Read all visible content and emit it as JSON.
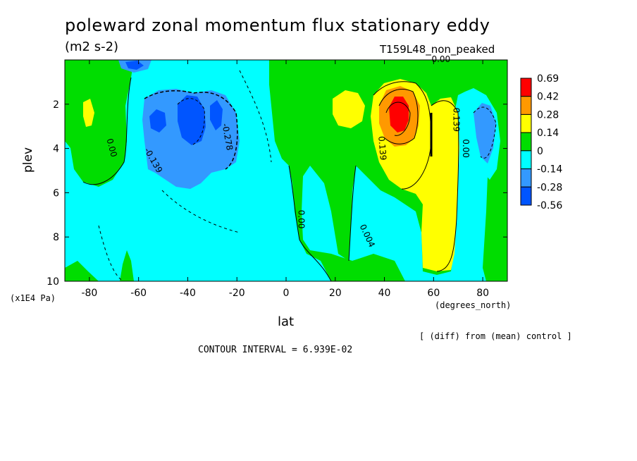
{
  "chart_data": {
    "type": "heatmap",
    "title": "poleward zonal momentum flux stationary eddy",
    "units": "(m2 s-2)",
    "run_label": "T159L48_non_peaked",
    "xlabel": "lat",
    "ylabel": "plev",
    "x_unit_label": "(degrees_north)",
    "y_unit_label": "(x1E4 Pa)",
    "xlim": [
      -90,
      90
    ],
    "ylim": [
      10,
      0
    ],
    "x_ticks": [
      -80,
      -60,
      -40,
      -20,
      0,
      20,
      40,
      60,
      80
    ],
    "x_tick_labels": [
      "-80",
      "-60",
      "-40",
      "-20",
      "0",
      "20",
      "40",
      "60",
      "80"
    ],
    "y_ticks": [
      2,
      4,
      6,
      8,
      10
    ],
    "y_tick_labels": [
      "2",
      "4",
      "6",
      "8",
      "10"
    ],
    "legend": {
      "placement": "right",
      "levels": [
        "0.69",
        "0.42",
        "0.28",
        "0.14",
        "0",
        "-0.14",
        "-0.28",
        "-0.56"
      ],
      "colors": [
        "#ff0000",
        "#ff9900",
        "#ffff00",
        "#00dd00",
        "#00ffff",
        "#3399ff",
        "#0055ff"
      ]
    },
    "contour_labels": [
      {
        "text": "0.00",
        "lat": -72,
        "plev": 4.0,
        "rot": 75
      },
      {
        "text": "-0.139",
        "lat": -55,
        "plev": 4.6,
        "rot": 60
      },
      {
        "text": "-0.278",
        "lat": -25,
        "plev": 3.5,
        "rot": 80
      },
      {
        "text": "0.00",
        "lat": 5,
        "plev": 7.2,
        "rot": 90
      },
      {
        "text": "0.004",
        "lat": 32,
        "plev": 8.0,
        "rot": 65
      },
      {
        "text": "0.139",
        "lat": 38,
        "plev": 4.0,
        "rot": 85
      },
      {
        "text": "0.139",
        "lat": 68,
        "plev": 2.7,
        "rot": 90
      },
      {
        "text": "0.00",
        "lat": 72,
        "plev": 4.0,
        "rot": 90
      },
      {
        "text": "0.00",
        "lat": 63,
        "plev": 0.1,
        "rot": 0
      }
    ],
    "contour_interval_text": "CONTOUR INTERVAL = 6.939E-02",
    "difference_note": "[ (diff) from (mean) control ]"
  }
}
